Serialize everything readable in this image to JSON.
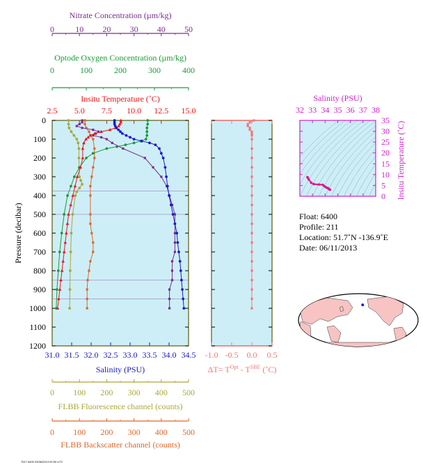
{
  "float_info": {
    "float": "Float:  6400",
    "profile": "Profile:  211",
    "location": "Location:  51.7˚N  -136.9˚E",
    "date": "Date:  06/11/2013"
  },
  "footer_text": "7517 6400 03/06/2013 00:00 UTC",
  "chart_data": [
    {
      "type": "line",
      "name": "profile-panel",
      "ylabel": "Pressure (decibar)",
      "ylim": [
        1200,
        0
      ],
      "yticks": [
        0,
        100,
        200,
        300,
        400,
        500,
        600,
        700,
        800,
        900,
        1000,
        1100,
        1200
      ],
      "grid": false,
      "colors": {
        "temperature": "#e8161b",
        "salinity": "#1a1acc",
        "nitrate": "#7a2d8c",
        "oxygen": "#1a9a3a",
        "fluorescence": "#a8a83a",
        "backscatter": "#d9692a",
        "background": "#cdeef7"
      },
      "axes": {
        "temperature": {
          "label": "Insitu Temperature (˚C)",
          "lim": [
            2.5,
            15.0
          ],
          "ticks": [
            "2.5",
            "5.0",
            "7.5",
            "10.0",
            "12.5",
            "15.0"
          ]
        },
        "salinity": {
          "label": "Salinity (PSU)",
          "lim": [
            31.0,
            34.5
          ],
          "ticks": [
            "31.0",
            "31.5",
            "32.0",
            "32.5",
            "33.0",
            "33.5",
            "34.0",
            "34.5"
          ]
        },
        "nitrate": {
          "label": "Nitrate Concentration (µm/kg)",
          "lim": [
            0,
            50
          ],
          "ticks": [
            "0",
            "10",
            "20",
            "30",
            "40",
            "50"
          ]
        },
        "oxygen": {
          "label": "Optode Oxygen Concentration (µm/kg)",
          "lim": [
            0,
            400
          ],
          "ticks": [
            "0",
            "100",
            "200",
            "300",
            "400"
          ]
        },
        "fluorescence": {
          "label": "FLBB Fluorescence channel (counts)",
          "lim": [
            0,
            500
          ],
          "ticks": [
            "0",
            "100",
            "200",
            "300",
            "400",
            "500"
          ]
        },
        "backscatter": {
          "label": "FLBB Backscatter channel (counts)",
          "lim": [
            0,
            500
          ],
          "ticks": [
            "0",
            "100",
            "200",
            "300",
            "400",
            "500"
          ]
        }
      },
      "series": {
        "temperature": [
          [
            0,
            8.8
          ],
          [
            10,
            8.8
          ],
          [
            20,
            8.7
          ],
          [
            30,
            8.6
          ],
          [
            40,
            8.3
          ],
          [
            50,
            7.8
          ],
          [
            60,
            7.0
          ],
          [
            70,
            6.4
          ],
          [
            80,
            6.0
          ],
          [
            90,
            5.8
          ],
          [
            100,
            5.6
          ],
          [
            120,
            5.4
          ],
          [
            150,
            5.3
          ],
          [
            200,
            5.3
          ],
          [
            250,
            5.1
          ],
          [
            300,
            4.8
          ],
          [
            350,
            4.6
          ],
          [
            400,
            4.4
          ],
          [
            450,
            4.2
          ],
          [
            500,
            4.0
          ],
          [
            550,
            3.9
          ],
          [
            600,
            3.8
          ],
          [
            650,
            3.7
          ],
          [
            700,
            3.6
          ],
          [
            750,
            3.5
          ],
          [
            800,
            3.4
          ],
          [
            850,
            3.3
          ],
          [
            900,
            3.2
          ],
          [
            950,
            3.1
          ],
          [
            1000,
            3.0
          ]
        ],
        "salinity": [
          [
            0,
            32.6
          ],
          [
            10,
            32.6
          ],
          [
            20,
            32.6
          ],
          [
            30,
            32.62
          ],
          [
            40,
            32.65
          ],
          [
            50,
            32.7
          ],
          [
            60,
            32.75
          ],
          [
            70,
            32.8
          ],
          [
            80,
            32.9
          ],
          [
            90,
            33.0
          ],
          [
            100,
            33.1
          ],
          [
            110,
            33.3
          ],
          [
            120,
            33.5
          ],
          [
            130,
            33.65
          ],
          [
            150,
            33.75
          ],
          [
            175,
            33.8
          ],
          [
            200,
            33.85
          ],
          [
            250,
            33.9
          ],
          [
            300,
            33.93
          ],
          [
            350,
            33.96
          ],
          [
            400,
            34.0
          ],
          [
            450,
            34.05
          ],
          [
            500,
            34.1
          ],
          [
            550,
            34.15
          ],
          [
            600,
            34.2
          ],
          [
            650,
            34.22
          ],
          [
            700,
            34.25
          ],
          [
            750,
            34.28
          ],
          [
            800,
            34.3
          ],
          [
            850,
            34.32
          ],
          [
            900,
            34.34
          ],
          [
            950,
            34.36
          ],
          [
            1000,
            34.38
          ]
        ],
        "nitrate": [
          [
            0,
            11
          ],
          [
            10,
            11
          ],
          [
            20,
            10
          ],
          [
            30,
            9
          ],
          [
            40,
            11
          ],
          [
            50,
            15
          ],
          [
            60,
            17
          ],
          [
            70,
            16
          ],
          [
            80,
            15
          ],
          [
            90,
            18
          ],
          [
            100,
            20
          ],
          [
            120,
            22
          ],
          [
            150,
            26
          ],
          [
            200,
            34
          ],
          [
            250,
            37
          ],
          [
            300,
            40
          ],
          [
            350,
            42
          ],
          [
            400,
            43
          ],
          [
            450,
            44
          ],
          [
            500,
            45
          ],
          [
            550,
            45
          ],
          [
            600,
            45
          ],
          [
            650,
            45
          ],
          [
            700,
            45
          ],
          [
            750,
            44
          ],
          [
            800,
            44
          ],
          [
            850,
            44
          ],
          [
            900,
            43
          ],
          [
            950,
            43
          ],
          [
            1000,
            43
          ]
        ],
        "oxygen": [
          [
            0,
            280
          ],
          [
            20,
            280
          ],
          [
            40,
            278
          ],
          [
            60,
            278
          ],
          [
            80,
            278
          ],
          [
            100,
            275
          ],
          [
            110,
            260
          ],
          [
            120,
            240
          ],
          [
            130,
            215
          ],
          [
            140,
            190
          ],
          [
            150,
            160
          ],
          [
            175,
            120
          ],
          [
            200,
            100
          ],
          [
            250,
            80
          ],
          [
            300,
            65
          ],
          [
            350,
            55
          ],
          [
            400,
            45
          ],
          [
            500,
            35
          ],
          [
            600,
            28
          ],
          [
            700,
            22
          ],
          [
            800,
            18
          ],
          [
            900,
            14
          ],
          [
            1000,
            12
          ]
        ],
        "fluorescence": [
          [
            0,
            60
          ],
          [
            20,
            60
          ],
          [
            40,
            62
          ],
          [
            60,
            70
          ],
          [
            80,
            80
          ],
          [
            100,
            90
          ],
          [
            120,
            95
          ],
          [
            150,
            98
          ],
          [
            200,
            98
          ],
          [
            250,
            99
          ],
          [
            300,
            100
          ],
          [
            320,
            105
          ],
          [
            340,
            110
          ],
          [
            360,
            100
          ],
          [
            380,
            90
          ],
          [
            400,
            85
          ],
          [
            500,
            75
          ],
          [
            600,
            70
          ],
          [
            700,
            68
          ],
          [
            800,
            66
          ],
          [
            900,
            65
          ],
          [
            1000,
            64
          ]
        ],
        "backscatter": [
          [
            0,
            120
          ],
          [
            20,
            120
          ],
          [
            40,
            125
          ],
          [
            60,
            135
          ],
          [
            80,
            140
          ],
          [
            100,
            150
          ],
          [
            150,
            155
          ],
          [
            200,
            155
          ],
          [
            250,
            150
          ],
          [
            300,
            145
          ],
          [
            350,
            140
          ],
          [
            400,
            140
          ],
          [
            500,
            140
          ],
          [
            550,
            140
          ],
          [
            600,
            145
          ],
          [
            650,
            150
          ],
          [
            700,
            150
          ],
          [
            750,
            140
          ],
          [
            800,
            135
          ],
          [
            850,
            130
          ],
          [
            900,
            128
          ],
          [
            950,
            128
          ],
          [
            1000,
            128
          ]
        ]
      },
      "horizontal_lines": [
        {
          "pressure": 375,
          "series": "nitrate"
        },
        {
          "pressure": 500,
          "series": "nitrate"
        },
        {
          "pressure": 850,
          "series": "nitrate"
        },
        {
          "pressure": 950,
          "series": "nitrate"
        }
      ]
    },
    {
      "type": "line",
      "name": "delta-t-panel",
      "xlabel": "ΔT= T",
      "xlabel_sup1": "Opt",
      "xlabel_mid": " - T",
      "xlabel_sup2": "SBE",
      "xlabel_end": " (˚C)",
      "xlim": [
        -1.0,
        0.5
      ],
      "xticks": [
        "-1.0",
        "-0.5",
        "0.0",
        "0.5"
      ],
      "ylim": [
        1200,
        0
      ],
      "color": "#f07878",
      "series": [
        [
          0,
          0.05
        ],
        [
          10,
          -0.05
        ],
        [
          20,
          -0.1
        ],
        [
          30,
          -0.1
        ],
        [
          40,
          -0.05
        ],
        [
          50,
          -0.05
        ],
        [
          60,
          0.0
        ],
        [
          70,
          0.0
        ],
        [
          80,
          0.0
        ],
        [
          100,
          0.0
        ],
        [
          150,
          0.0
        ],
        [
          200,
          0.0
        ],
        [
          250,
          0.0
        ],
        [
          300,
          0.0
        ],
        [
          350,
          0.0
        ],
        [
          400,
          0.0
        ],
        [
          450,
          0.0
        ],
        [
          500,
          0.0
        ],
        [
          550,
          0.0
        ],
        [
          600,
          0.0
        ],
        [
          650,
          0.0
        ],
        [
          700,
          0.0
        ],
        [
          750,
          0.0
        ],
        [
          800,
          0.0
        ],
        [
          850,
          0.0
        ],
        [
          900,
          0.0
        ],
        [
          950,
          0.0
        ],
        [
          1000,
          0.0
        ]
      ]
    },
    {
      "type": "scatter",
      "name": "ts-diagram",
      "xlabel": "Salinity (PSU)",
      "ylabel": "Insitu Temperature (˚C)",
      "xlim": [
        32,
        38
      ],
      "ylim": [
        0,
        35
      ],
      "xticks": [
        "32",
        "33",
        "34",
        "35",
        "36",
        "37",
        "38"
      ],
      "yticks": [
        "0",
        "5",
        "10",
        "15",
        "20",
        "25",
        "30",
        "35"
      ],
      "color": "#e0188a",
      "series": [
        [
          32.6,
          8.8
        ],
        [
          32.62,
          8.6
        ],
        [
          32.7,
          7.8
        ],
        [
          32.9,
          6.2
        ],
        [
          33.1,
          5.6
        ],
        [
          33.5,
          5.4
        ],
        [
          33.8,
          5.3
        ],
        [
          33.9,
          4.8
        ],
        [
          34.0,
          4.4
        ],
        [
          34.1,
          4.0
        ],
        [
          34.2,
          3.8
        ],
        [
          34.25,
          3.6
        ],
        [
          34.3,
          3.4
        ],
        [
          34.34,
          3.2
        ],
        [
          34.38,
          3.0
        ]
      ]
    },
    {
      "type": "map",
      "name": "world-map",
      "marker": {
        "lon": -136.9,
        "lat": 51.7
      }
    }
  ]
}
